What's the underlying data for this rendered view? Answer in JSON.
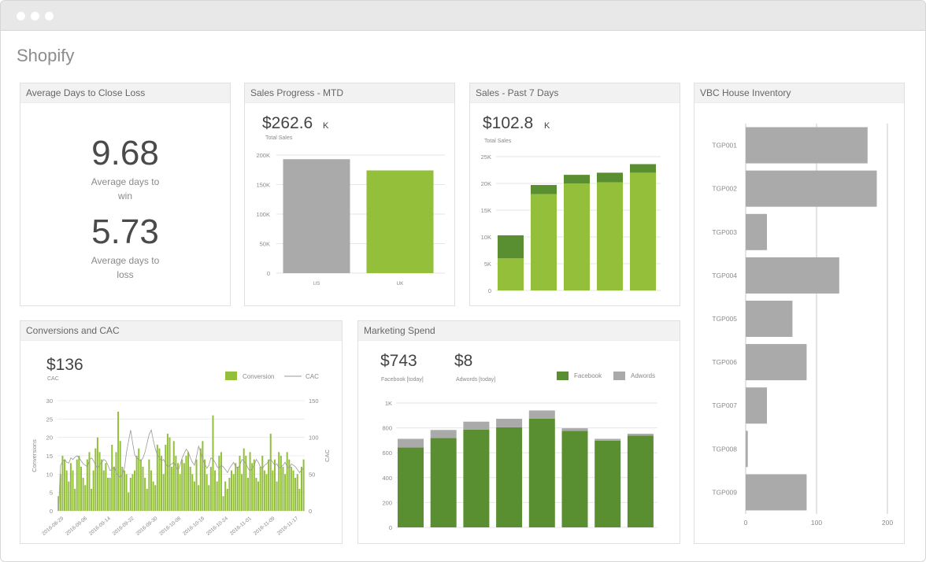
{
  "app_title": "Shopify",
  "colors": {
    "green_light": "#93bf3b",
    "green_dark": "#5a8f31",
    "gray_bar": "#aaaaaa",
    "line": "#999999"
  },
  "panels": {
    "close_loss": {
      "title": "Average Days to Close Loss",
      "win_value": "9.68",
      "win_label": "Average days to win",
      "loss_value": "5.73",
      "loss_label": "Average days to loss"
    },
    "sales_progress": {
      "title": "Sales Progress - MTD",
      "total_value": "$262.6",
      "total_suffix": "K",
      "total_label": "Total Sales"
    },
    "sales_7days": {
      "title": "Sales - Past 7 Days",
      "total_value": "$102.8",
      "total_suffix": "K",
      "total_label": "Total Sales"
    },
    "inventory": {
      "title": "VBC House Inventory"
    },
    "conversions": {
      "title": "Conversions and CAC",
      "value": "$136",
      "value_label": "CAC",
      "legend_bar": "Conversion",
      "legend_line": "CAC"
    },
    "marketing": {
      "title": "Marketing Spend",
      "fb_value": "$743",
      "fb_label": "Facebook [today]",
      "aw_value": "$8",
      "aw_label": "Adwords [today]",
      "legend_fb": "Facebook",
      "legend_aw": "Adwords"
    }
  },
  "chart_data": [
    {
      "id": "sales_progress",
      "type": "bar",
      "categories": [
        "US",
        "UK"
      ],
      "values": [
        193000,
        174000
      ],
      "ylim": [
        0,
        200000
      ],
      "yticks": [
        "0",
        "50K",
        "100K",
        "150K",
        "200K"
      ],
      "grid": true
    },
    {
      "id": "sales_7days",
      "type": "bar",
      "stacked": true,
      "categories": [
        "",
        "",
        "",
        "",
        ""
      ],
      "series": [
        {
          "values": [
            6000,
            18000,
            20000,
            20200,
            22000
          ]
        },
        {
          "values": [
            4300,
            1700,
            1600,
            1800,
            1600
          ]
        }
      ],
      "ylim": [
        0,
        25000
      ],
      "yticks": [
        "0",
        "5K",
        "10K",
        "15K",
        "20K",
        "25K"
      ],
      "grid": true
    },
    {
      "id": "inventory",
      "type": "bar",
      "orientation": "horizontal",
      "categories": [
        "TGP001",
        "TGP002",
        "TGP003",
        "TGP004",
        "TGP005",
        "TGP006",
        "TGP007",
        "TGP008",
        "TGP009"
      ],
      "values": [
        172,
        185,
        30,
        132,
        66,
        86,
        30,
        3,
        86
      ],
      "xlim": [
        0,
        220
      ],
      "xticks": [
        "0",
        "100",
        "200"
      ],
      "grid": true
    },
    {
      "id": "conversions",
      "type": "bar",
      "xticks": [
        "2016-08-29",
        "2016-09-06",
        "2016-09-14",
        "2016-09-22",
        "2016-09-30",
        "2016-10-08",
        "2016-10-16",
        "2016-10-24",
        "2016-11-01",
        "2016-11-09",
        "2016-11-17"
      ],
      "ylabel": "Conversions",
      "y2label": "CAC",
      "ylim": [
        0,
        30
      ],
      "y2lim": [
        0,
        150
      ],
      "yticks": [
        "0",
        "5",
        "10",
        "15",
        "20",
        "25",
        "30"
      ],
      "y2ticks": [
        "0",
        "50",
        "100",
        "150"
      ],
      "series": [
        {
          "name": "Conversion",
          "type": "bar",
          "values": [
            4,
            10,
            15,
            14,
            11,
            8,
            13,
            11,
            6,
            14,
            15,
            12,
            9,
            7,
            14,
            16,
            6,
            11,
            17,
            20,
            16,
            14,
            11,
            13,
            9,
            9,
            18,
            12,
            16,
            27,
            19,
            12,
            11,
            10,
            5,
            9,
            10,
            11,
            15,
            17,
            14,
            12,
            9,
            6,
            14,
            11,
            8,
            7,
            18,
            17,
            15,
            10,
            18,
            21,
            20,
            12,
            19,
            15,
            13,
            10,
            14,
            13,
            15,
            16,
            12,
            10,
            8,
            14,
            7,
            17,
            19,
            14,
            10,
            7,
            12,
            26,
            11,
            8,
            15,
            16,
            4,
            8,
            6,
            9,
            11,
            10,
            13,
            12,
            15,
            10,
            17,
            15,
            9,
            16,
            13,
            14,
            9,
            8,
            12,
            15,
            11,
            10,
            14,
            21,
            11,
            14,
            8,
            16,
            15,
            12,
            10,
            16,
            14,
            12,
            11,
            9,
            10,
            6,
            12,
            14
          ]
        },
        {
          "name": "CAC",
          "type": "line",
          "values": [
            0,
            62,
            67,
            70,
            66,
            65,
            72,
            70,
            73,
            75,
            72,
            68,
            64,
            62,
            60,
            70,
            72,
            68,
            62,
            58,
            63,
            66,
            70,
            68,
            62,
            55,
            56,
            60,
            52,
            48,
            45,
            50,
            58,
            80,
            95,
            110,
            92,
            76,
            72,
            70,
            68,
            72,
            80,
            92,
            104,
            110,
            96,
            84,
            76,
            72,
            68,
            70,
            64,
            60,
            62,
            64,
            66,
            60,
            55,
            62,
            72,
            78,
            84,
            80,
            72,
            66,
            62,
            74,
            88,
            80,
            70,
            64,
            58,
            62,
            72,
            70,
            66,
            60,
            58,
            62,
            60,
            56,
            52,
            58,
            62,
            66,
            60,
            58,
            62,
            70,
            68,
            64,
            58,
            54,
            58,
            62,
            70,
            66,
            60,
            58,
            62,
            64,
            68,
            70,
            66,
            62,
            64,
            58,
            60,
            62,
            66,
            60,
            58,
            64,
            62,
            60,
            56,
            52,
            56,
            58
          ]
        }
      ]
    },
    {
      "id": "marketing",
      "type": "bar",
      "stacked": true,
      "categories": [
        "",
        "",
        "",
        "",
        "",
        "",
        "",
        ""
      ],
      "series": [
        {
          "name": "Facebook",
          "values": [
            642,
            718,
            785,
            805,
            875,
            775,
            697,
            738
          ]
        },
        {
          "name": "Adwords",
          "values": [
            70,
            65,
            65,
            68,
            65,
            22,
            15,
            15
          ]
        }
      ],
      "ylim": [
        0,
        1000
      ],
      "yticks": [
        "0",
        "200",
        "400",
        "600",
        "800",
        "1K"
      ],
      "grid": true
    }
  ]
}
